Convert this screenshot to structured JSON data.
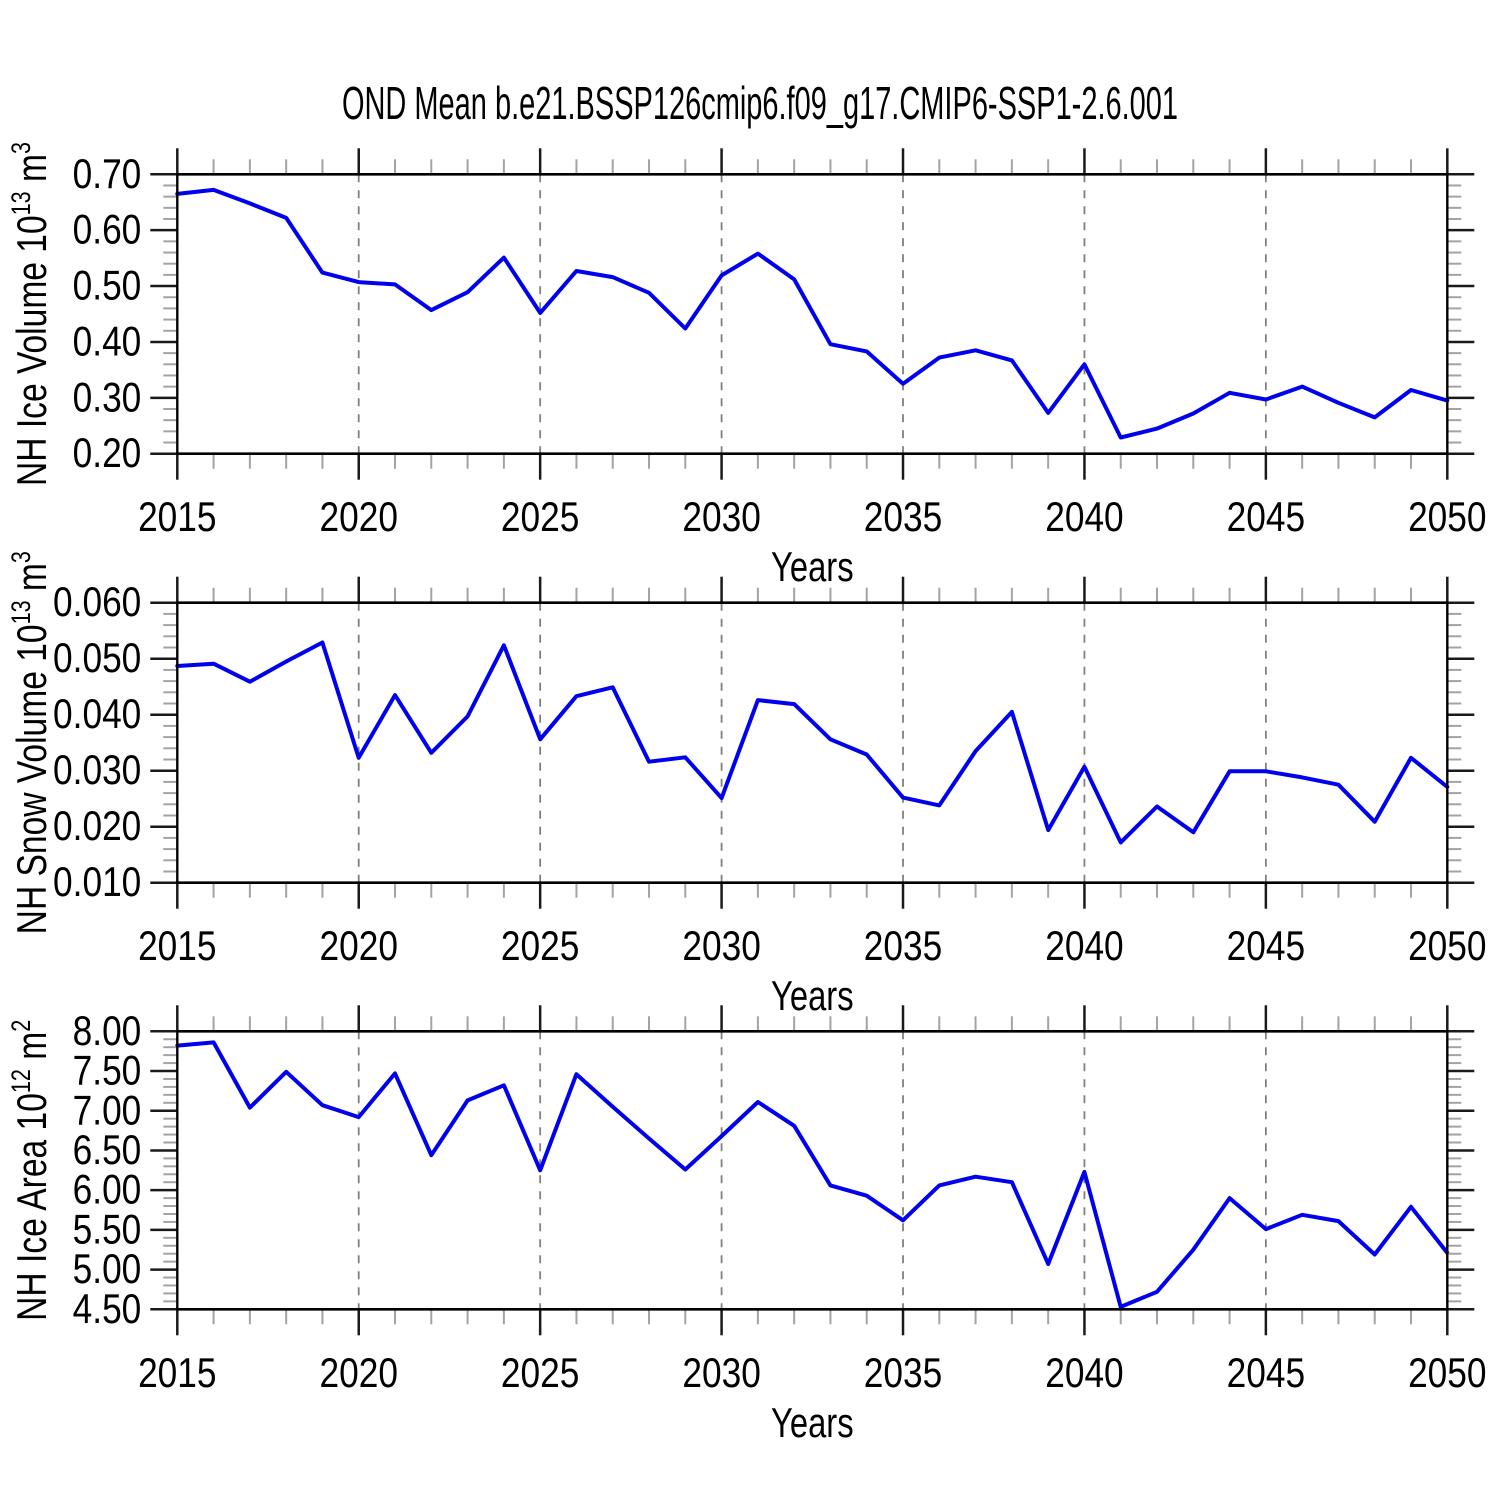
{
  "title": "OND Mean b.e21.BSSP126cmip6.f09_g17.CMIP6-SSP1-2.6.001",
  "colors": {
    "line": "#0000ee",
    "axis": "#000000",
    "major_tick": "#1a1a1a",
    "minor_tick": "#a3a3a3",
    "grid": "#808080",
    "text": "#000000",
    "background": "#ffffff"
  },
  "chart_data": {
    "type": "line",
    "title": "OND Mean b.e21.BSSP126cmip6.f09_g17.CMIP6-SSP1-2.6.001",
    "x_label": "Years",
    "x": [
      2015,
      2016,
      2017,
      2018,
      2019,
      2020,
      2021,
      2022,
      2023,
      2024,
      2025,
      2026,
      2027,
      2028,
      2029,
      2030,
      2031,
      2032,
      2033,
      2034,
      2035,
      2036,
      2037,
      2038,
      2039,
      2040,
      2041,
      2042,
      2043,
      2044,
      2045,
      2046,
      2047,
      2048,
      2049,
      2050
    ],
    "x_ticks": [
      2015,
      2020,
      2025,
      2030,
      2035,
      2040,
      2045,
      2050
    ],
    "x_tick_labels": [
      "2015",
      "2020",
      "2025",
      "2030",
      "2035",
      "2040",
      "2045",
      "2050"
    ],
    "x_minor_step": 1,
    "grid_x": [
      2020,
      2025,
      2030,
      2035,
      2040,
      2045
    ],
    "legend": "none",
    "grid_style": "vertical-dashed",
    "panels": [
      {
        "name": "nh-ice-volume",
        "ylabel_prefix": "NH Ice Volume 10",
        "ylabel_exp": "13",
        "ylabel_unit": " m",
        "ylabel_unit_exp": "3",
        "ylim": [
          0.2,
          0.7
        ],
        "y_ticks": [
          0.2,
          0.3,
          0.4,
          0.5,
          0.6,
          0.7
        ],
        "y_tick_labels": [
          "0.20",
          "0.30",
          "0.40",
          "0.50",
          "0.60",
          "0.70"
        ],
        "y_minor_step": 0.02,
        "values": [
          0.665,
          0.672,
          0.648,
          0.622,
          0.524,
          0.507,
          0.503,
          0.457,
          0.489,
          0.551,
          0.452,
          0.527,
          0.516,
          0.488,
          0.424,
          0.519,
          0.558,
          0.512,
          0.396,
          0.383,
          0.325,
          0.372,
          0.385,
          0.367,
          0.273,
          0.36,
          0.229,
          0.245,
          0.272,
          0.309,
          0.297,
          0.32,
          0.291,
          0.265,
          0.314,
          0.295
        ]
      },
      {
        "name": "nh-snow-volume",
        "ylabel_prefix": "NH Snow Volume 10",
        "ylabel_exp": "13",
        "ylabel_unit": " m",
        "ylabel_unit_exp": "3",
        "ylim": [
          0.01,
          0.06
        ],
        "y_ticks": [
          0.01,
          0.02,
          0.03,
          0.04,
          0.05,
          0.06
        ],
        "y_tick_labels": [
          "0.010",
          "0.020",
          "0.030",
          "0.040",
          "0.050",
          "0.060"
        ],
        "y_minor_step": 0.002,
        "values": [
          0.0487,
          0.0491,
          0.0459,
          0.0495,
          0.0529,
          0.0323,
          0.0435,
          0.0332,
          0.0397,
          0.0524,
          0.0356,
          0.0433,
          0.0449,
          0.0316,
          0.0324,
          0.0251,
          0.0426,
          0.0419,
          0.0356,
          0.0329,
          0.0252,
          0.0238,
          0.0335,
          0.0405,
          0.0194,
          0.0307,
          0.0172,
          0.0236,
          0.019,
          0.0299,
          0.0299,
          0.0288,
          0.0275,
          0.0209,
          0.0323,
          0.0271
        ]
      },
      {
        "name": "nh-ice-area",
        "ylabel_prefix": "NH Ice Area 10",
        "ylabel_exp": "12",
        "ylabel_unit": " m",
        "ylabel_unit_exp": "2",
        "ylim": [
          4.5,
          8.0
        ],
        "y_ticks": [
          4.5,
          5.0,
          5.5,
          6.0,
          6.5,
          7.0,
          7.5,
          8.0
        ],
        "y_tick_labels": [
          "4.50",
          "5.00",
          "5.50",
          "6.00",
          "6.50",
          "7.00",
          "7.50",
          "8.00"
        ],
        "y_minor_step": 0.1,
        "values": [
          7.82,
          7.86,
          7.04,
          7.49,
          7.07,
          6.92,
          7.47,
          6.44,
          7.13,
          7.32,
          6.25,
          7.46,
          7.05,
          6.65,
          6.26,
          6.68,
          7.11,
          6.81,
          6.06,
          5.93,
          5.62,
          6.06,
          6.17,
          6.1,
          5.07,
          6.23,
          4.53,
          4.72,
          5.25,
          5.9,
          5.51,
          5.69,
          5.61,
          5.19,
          5.79,
          5.21
        ]
      }
    ]
  }
}
